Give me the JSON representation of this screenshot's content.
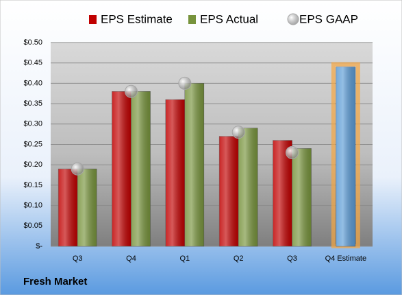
{
  "chart_data": {
    "type": "bar",
    "categories": [
      "Q3",
      "Q4",
      "Q1",
      "Q2",
      "Q3",
      "Q4 Estimate"
    ],
    "series": [
      {
        "name": "EPS Estimate",
        "color": "#c00000",
        "point_colors": [
          "#c00000",
          "#c00000",
          "#c00000",
          "#c00000",
          "#c00000",
          "#5b9bd5"
        ],
        "values": [
          0.19,
          0.38,
          0.36,
          0.27,
          0.26,
          0.44
        ]
      },
      {
        "name": "EPS Actual",
        "color": "#77933c",
        "values": [
          0.19,
          0.38,
          0.4,
          0.29,
          0.24,
          null
        ]
      },
      {
        "name": "EPS GAAP",
        "color": "#a6a6a6",
        "marker": "circle",
        "values": [
          0.19,
          0.38,
          0.4,
          0.28,
          0.23,
          null
        ]
      }
    ],
    "ylim": [
      0,
      0.5
    ],
    "yticks": [
      {
        "value": 0,
        "label": "$-"
      },
      {
        "value": 0.05,
        "label": "$0.05"
      },
      {
        "value": 0.1,
        "label": "$0.10"
      },
      {
        "value": 0.15,
        "label": "$0.15"
      },
      {
        "value": 0.2,
        "label": "$0.20"
      },
      {
        "value": 0.25,
        "label": "$0.25"
      },
      {
        "value": 0.3,
        "label": "$0.30"
      },
      {
        "value": 0.35,
        "label": "$0.35"
      },
      {
        "value": 0.4,
        "label": "$0.40"
      },
      {
        "value": 0.45,
        "label": "$0.45"
      },
      {
        "value": 0.5,
        "label": "$0.50"
      }
    ],
    "grid": true,
    "legend": "top",
    "footer": "Fresh Market"
  }
}
